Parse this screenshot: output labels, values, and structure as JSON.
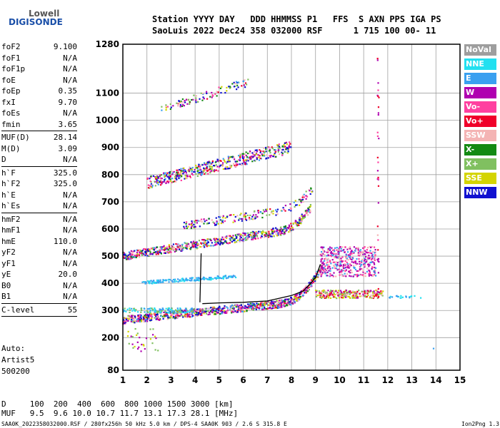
{
  "logo": {
    "line1": "Lowell",
    "line2": "DIGISONDE"
  },
  "header": {
    "row1": "Station YYYY DAY   DDD HHMMSS P1   FFS  S AXN PPS IGA PS",
    "row2": "SaoLuis 2022 Dec24 358 032000 RSF      1 715 100 00- 11"
  },
  "params": [
    {
      "label": "foF2",
      "value": "9.100"
    },
    {
      "label": "foF1",
      "value": "N/A"
    },
    {
      "label": "foF1p",
      "value": "N/A"
    },
    {
      "label": "foE",
      "value": "N/A"
    },
    {
      "label": "foEp",
      "value": "0.35"
    },
    {
      "label": "fxI",
      "value": "9.70"
    },
    {
      "label": "foEs",
      "value": "N/A"
    },
    {
      "label": "fmin",
      "value": "3.65"
    },
    {
      "sep": true
    },
    {
      "label": "MUF(D)",
      "value": "28.14"
    },
    {
      "label": "M(D)",
      "value": "3.09"
    },
    {
      "label": "D",
      "value": "N/A"
    },
    {
      "sep": true
    },
    {
      "label": "h`F",
      "value": "325.0"
    },
    {
      "label": "h`F2",
      "value": "325.0"
    },
    {
      "label": "h`E",
      "value": "N/A"
    },
    {
      "label": "h`Es",
      "value": "N/A"
    },
    {
      "sep": true
    },
    {
      "label": "hmF2",
      "value": "N/A"
    },
    {
      "label": "hmF1",
      "value": "N/A"
    },
    {
      "label": "hmE",
      "value": "110.0"
    },
    {
      "label": "yF2",
      "value": "N/A"
    },
    {
      "label": "yF1",
      "value": "N/A"
    },
    {
      "label": "yE",
      "value": "20.0"
    },
    {
      "label": "B0",
      "value": "N/A"
    },
    {
      "label": "B1",
      "value": "N/A"
    },
    {
      "sep": true
    },
    {
      "label": "C-level",
      "value": "55"
    },
    {
      "sep": true
    }
  ],
  "auto": {
    "line1": "Auto:",
    "line2": "Artist5",
    "line3": "500200"
  },
  "legend": [
    {
      "name": "NoVal",
      "color": "#9e9e9e"
    },
    {
      "name": "NNE",
      "color": "#22e0f0"
    },
    {
      "name": "E",
      "color": "#3aa0f0"
    },
    {
      "name": "W",
      "color": "#b000b0"
    },
    {
      "name": "Vo-",
      "color": "#ff40a0"
    },
    {
      "name": "Vo+",
      "color": "#f0002a"
    },
    {
      "name": "SSW",
      "color": "#f4b4b4"
    },
    {
      "name": "X-",
      "color": "#138a13"
    },
    {
      "name": "X+",
      "color": "#80c060"
    },
    {
      "name": "SSE",
      "color": "#d4d400"
    },
    {
      "name": "NNW",
      "color": "#1010d0"
    }
  ],
  "footer": {
    "d_row": "D     100  200  400  600  800 1000 1500 3000 [km]",
    "muf_row": "MUF   9.5  9.6 10.0 10.7 11.7 13.1 17.3 28.1 [MHz]",
    "file": "SAA0K_2022358032000.RSF / 280fx256h 50 kHz 5.0 km / DPS-4 SAA0K 903 / 2.6 S 315.8 E",
    "version": "Ion2Png 1.3.17"
  },
  "chart_data": {
    "type": "scatter",
    "xlim": [
      1,
      15
    ],
    "ylim": [
      80,
      1280
    ],
    "x_ticks": [
      1,
      2,
      3,
      4,
      5,
      6,
      7,
      8,
      9,
      10,
      11,
      12,
      13,
      14,
      15
    ],
    "y_ticks": [
      80,
      200,
      300,
      400,
      500,
      600,
      700,
      800,
      900,
      1000,
      1100,
      1280
    ],
    "grid": true,
    "legend_placement": "right",
    "traces": [
      {
        "name": "O-trace",
        "color": "#000000",
        "x": [
          4.3,
          5,
          6,
          7,
          7.5,
          8,
          8.5,
          9,
          9.2
        ],
        "y": [
          325,
          328,
          330,
          335,
          345,
          355,
          372,
          420,
          470
        ]
      },
      {
        "name": "X-trace",
        "color": "#000000",
        "x": [
          4.2,
          4.25
        ],
        "y": [
          330,
          510
        ]
      }
    ]
  }
}
